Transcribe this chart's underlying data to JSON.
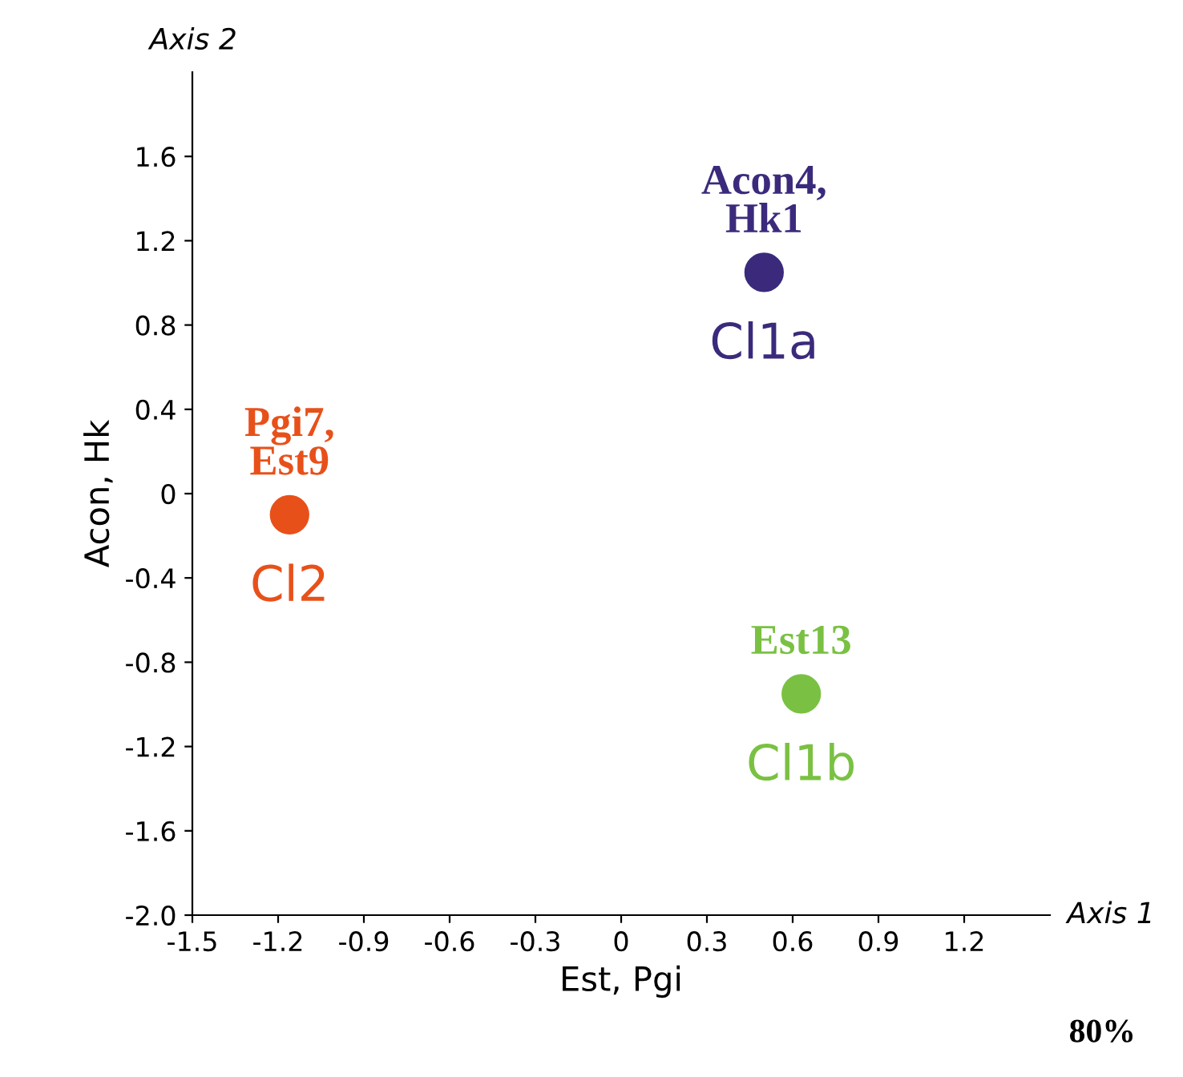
{
  "chart_data": {
    "type": "scatter",
    "xlabel": "Est, Pgi",
    "ylabel": "Acon, Hk",
    "xlim": [
      -1.5,
      1.5
    ],
    "ylim": [
      -2.0,
      2.0
    ],
    "xticks": [
      -1.5,
      -1.2,
      -0.9,
      -0.6,
      -0.3,
      0,
      0.3,
      0.6,
      0.9,
      1.2
    ],
    "yticks": [
      {
        "value": -2.0,
        "label": "-2.0"
      },
      -1.6,
      -1.2,
      -0.8,
      -0.4,
      0,
      0.4,
      0.8,
      1.2,
      1.6
    ],
    "grid": false,
    "legend": false,
    "marker": "circle",
    "series": [
      {
        "name": "Cl1a",
        "color": "#3b2a7c",
        "x": [
          0.5
        ],
        "values": [
          1.05
        ]
      },
      {
        "name": "Cl2",
        "color": "#e8501a",
        "x": [
          -1.16
        ],
        "values": [
          -0.1
        ]
      },
      {
        "name": "Cl1b",
        "color": "#7ac143",
        "x": [
          0.63
        ],
        "values": [
          -0.95
        ]
      }
    ],
    "annotations": [
      {
        "text": "Acon4,\nHk1",
        "x": 0.5,
        "y": 1.05
      },
      {
        "text": "Pgi7,\nEst9",
        "x": -1.16,
        "y": -0.1
      },
      {
        "text": "Est13",
        "x": 0.63,
        "y": -0.95
      },
      "Axis 1",
      "Axis 2",
      "80%"
    ]
  }
}
